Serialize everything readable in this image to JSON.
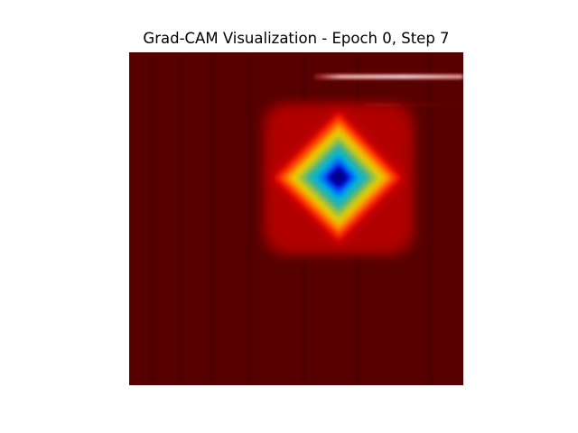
{
  "figure": {
    "title": "Grad-CAM Visualization - Epoch 0, Step 7"
  },
  "heatmap": {
    "colormap": "jet",
    "background_color": "#560000",
    "hotspot_center_color": "#00007f"
  }
}
